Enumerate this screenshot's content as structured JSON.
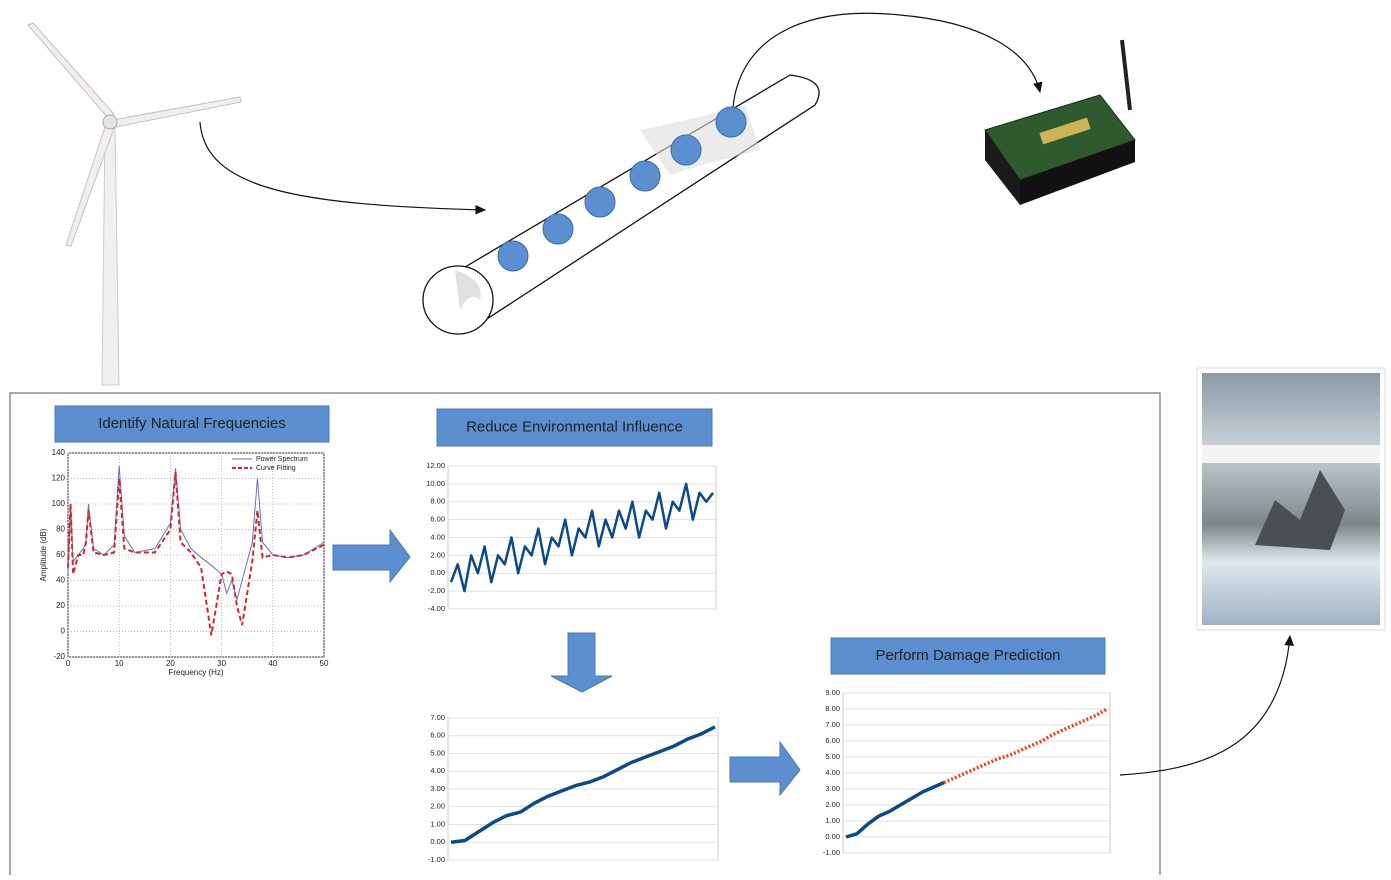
{
  "steps": [
    "Identify Natural Frequencies",
    "Reduce Environmental Influence",
    "Perform Damage Prediction"
  ],
  "charts": [
    {
      "type": "spectrum",
      "xlabel": "Frequency (Hz)",
      "ylabel": "Amplitude (dB)",
      "xlim": [
        0,
        50
      ],
      "xticks": [
        0,
        10,
        20,
        30,
        40,
        50
      ],
      "ylim": [
        -20,
        140
      ],
      "yticks": [
        -20,
        0,
        20,
        40,
        60,
        80,
        100,
        120,
        140
      ],
      "grid": true,
      "x": [
        0,
        0.5,
        1,
        2,
        3,
        3.5,
        4,
        5,
        7,
        9,
        10,
        11,
        13,
        17,
        20,
        21,
        22,
        24,
        26,
        28,
        30,
        31,
        32,
        33,
        34,
        36,
        37,
        38,
        40,
        43,
        46,
        50
      ],
      "series": [
        {
          "name": "Power Spectrum",
          "color": "#6a6fc0",
          "values": [
            45,
            100,
            55,
            60,
            65,
            70,
            100,
            65,
            60,
            68,
            130,
            75,
            62,
            65,
            85,
            128,
            80,
            65,
            58,
            52,
            45,
            30,
            40,
            25,
            40,
            70,
            120,
            70,
            60,
            58,
            60,
            70
          ]
        },
        {
          "name": "Curve Fitting",
          "color": "#cc2b2b",
          "values": [
            50,
            100,
            45,
            60,
            60,
            70,
            95,
            62,
            60,
            62,
            120,
            65,
            62,
            62,
            80,
            125,
            70,
            62,
            50,
            -3,
            45,
            47,
            45,
            20,
            5,
            55,
            95,
            58,
            60,
            58,
            60,
            68
          ]
        }
      ]
    },
    {
      "type": "line",
      "ylim": [
        -4,
        12
      ],
      "yticks": [
        {
          "value": -4,
          "label": "-4.00"
        },
        {
          "value": -2,
          "label": "-2.00"
        },
        {
          "value": 0,
          "label": "0.00"
        },
        {
          "value": 2,
          "label": "2.00"
        },
        {
          "value": 4,
          "label": "4.00"
        },
        {
          "value": 6,
          "label": "6.00"
        },
        {
          "value": 8,
          "label": "8.00"
        },
        {
          "value": 10,
          "label": "10.00"
        },
        {
          "value": 12,
          "label": "12.00"
        }
      ],
      "grid": true,
      "series": [
        {
          "color": "#0b4a8a",
          "values": [
            -1,
            1,
            -2,
            2,
            0,
            3,
            -1,
            2,
            1,
            4,
            0,
            3,
            2,
            5,
            1,
            4,
            3,
            6,
            2,
            5,
            4,
            7,
            3,
            6,
            4,
            7,
            5,
            8,
            4,
            7,
            6,
            9,
            5,
            8,
            7,
            10,
            6,
            9,
            8,
            9
          ]
        }
      ]
    },
    {
      "type": "line",
      "ylim": [
        -1,
        7
      ],
      "yticks": [
        {
          "value": -1,
          "label": "-1.00"
        },
        {
          "value": 0,
          "label": "0.00"
        },
        {
          "value": 1,
          "label": "1.00"
        },
        {
          "value": 2,
          "label": "2.00"
        },
        {
          "value": 3,
          "label": "3.00"
        },
        {
          "value": 4,
          "label": "4.00"
        },
        {
          "value": 5,
          "label": "5.00"
        },
        {
          "value": 6,
          "label": "6.00"
        },
        {
          "value": 7,
          "label": "7.00"
        }
      ],
      "grid": true,
      "series": [
        {
          "color": "#0b4a8a",
          "values": [
            0,
            0.1,
            0.6,
            1.1,
            1.5,
            1.7,
            2.2,
            2.6,
            2.9,
            3.2,
            3.4,
            3.7,
            4.1,
            4.5,
            4.8,
            5.1,
            5.4,
            5.8,
            6.1,
            6.5
          ]
        }
      ]
    },
    {
      "type": "prediction",
      "ylim": [
        -1,
        9
      ],
      "yticks": [
        {
          "value": -1,
          "label": "-1.00"
        },
        {
          "value": 0,
          "label": "0.00"
        },
        {
          "value": 1,
          "label": "1.00"
        },
        {
          "value": 2,
          "label": "2.00"
        },
        {
          "value": 3,
          "label": "3.00"
        },
        {
          "value": 4,
          "label": "4.00"
        },
        {
          "value": 5,
          "label": "5.00"
        },
        {
          "value": 6,
          "label": "6.00"
        },
        {
          "value": 7,
          "label": "7.00"
        },
        {
          "value": 8,
          "label": "8.00"
        },
        {
          "value": 9,
          "label": "9.00"
        }
      ],
      "grid": true,
      "series": [
        {
          "color": "#0b4a8a",
          "values": [
            0,
            0.2,
            0.8,
            1.3,
            1.6,
            2.0,
            2.4,
            2.8,
            3.1,
            3.4
          ]
        },
        {
          "color": "#e8441c",
          "values": [
            3.4,
            3.7,
            4.0,
            4.3,
            4.6,
            4.9,
            5.1,
            5.4,
            5.7,
            6.0,
            6.4,
            6.7,
            7.0,
            7.3,
            7.6,
            8.0
          ]
        }
      ]
    }
  ]
}
